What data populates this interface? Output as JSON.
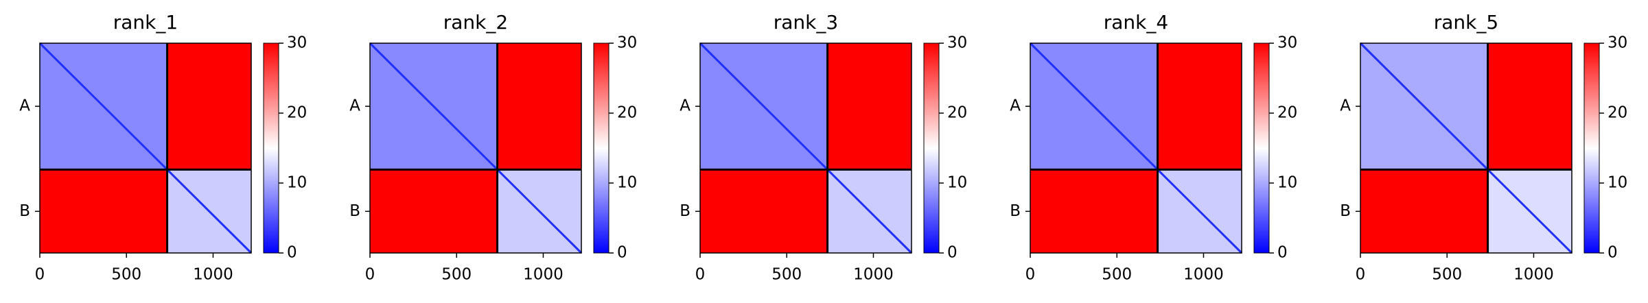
{
  "chart_data": [
    {
      "type": "heatmap",
      "title": "rank_1",
      "xlim": [
        0,
        1220
      ],
      "xticks": [
        0,
        500,
        1000
      ],
      "ylim": [
        1220,
        0
      ],
      "yticks": [
        {
          "value": 367,
          "label": "A"
        },
        {
          "value": 978,
          "label": "B"
        }
      ],
      "bins": [
        0,
        735,
        1220
      ],
      "values": [
        [
          8,
          30
        ],
        [
          30,
          12
        ]
      ],
      "colormap": "bwr",
      "clim": [
        0,
        30
      ],
      "cticks": [
        0,
        10,
        20,
        30
      ]
    },
    {
      "type": "heatmap",
      "title": "rank_2",
      "xlim": [
        0,
        1220
      ],
      "xticks": [
        0,
        500,
        1000
      ],
      "ylim": [
        1220,
        0
      ],
      "yticks": [
        {
          "value": 367,
          "label": "A"
        },
        {
          "value": 978,
          "label": "B"
        }
      ],
      "bins": [
        0,
        735,
        1220
      ],
      "values": [
        [
          8,
          30
        ],
        [
          30,
          12
        ]
      ],
      "colormap": "bwr",
      "clim": [
        0,
        30
      ],
      "cticks": [
        0,
        10,
        20,
        30
      ]
    },
    {
      "type": "heatmap",
      "title": "rank_3",
      "xlim": [
        0,
        1220
      ],
      "xticks": [
        0,
        500,
        1000
      ],
      "ylim": [
        1220,
        0
      ],
      "yticks": [
        {
          "value": 367,
          "label": "A"
        },
        {
          "value": 978,
          "label": "B"
        }
      ],
      "bins": [
        0,
        735,
        1220
      ],
      "values": [
        [
          8,
          30
        ],
        [
          30,
          12
        ]
      ],
      "colormap": "bwr",
      "clim": [
        0,
        30
      ],
      "cticks": [
        0,
        10,
        20,
        30
      ]
    },
    {
      "type": "heatmap",
      "title": "rank_4",
      "xlim": [
        0,
        1220
      ],
      "xticks": [
        0,
        500,
        1000
      ],
      "ylim": [
        1220,
        0
      ],
      "yticks": [
        {
          "value": 367,
          "label": "A"
        },
        {
          "value": 978,
          "label": "B"
        }
      ],
      "bins": [
        0,
        735,
        1220
      ],
      "values": [
        [
          8,
          30
        ],
        [
          30,
          12
        ]
      ],
      "colormap": "bwr",
      "clim": [
        0,
        30
      ],
      "cticks": [
        0,
        10,
        20,
        30
      ]
    },
    {
      "type": "heatmap",
      "title": "rank_5",
      "xlim": [
        0,
        1220
      ],
      "xticks": [
        0,
        500,
        1000
      ],
      "ylim": [
        1220,
        0
      ],
      "yticks": [
        {
          "value": 367,
          "label": "A"
        },
        {
          "value": 978,
          "label": "B"
        }
      ],
      "bins": [
        0,
        735,
        1220
      ],
      "values": [
        [
          10,
          30
        ],
        [
          30,
          13
        ]
      ],
      "colormap": "bwr",
      "clim": [
        0,
        30
      ],
      "cticks": [
        0,
        10,
        20,
        30
      ]
    }
  ]
}
